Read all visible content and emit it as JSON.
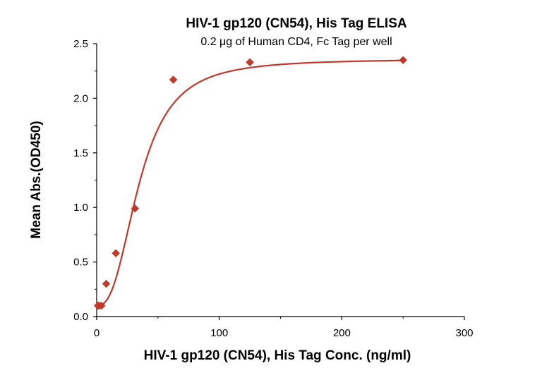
{
  "chart_data": {
    "type": "scatter",
    "title": "HIV-1 gp120 (CN54), His Tag ELISA",
    "subtitle": "0.2 μg of Human CD4, Fc Tag per well",
    "xlabel": "HIV-1 gp120 (CN54), His Tag Conc. (ng/ml)",
    "ylabel": "Mean Abs.(OD450)",
    "xlim": [
      0,
      300
    ],
    "ylim": [
      0,
      2.5
    ],
    "xticks": [
      0,
      100,
      200,
      300
    ],
    "yticks": [
      0.0,
      0.5,
      1.0,
      1.5,
      2.0,
      2.5
    ],
    "xtick_labels": [
      "0",
      "100",
      "200",
      "300"
    ],
    "ytick_labels": [
      "0.0",
      "0.5",
      "1.0",
      "1.5",
      "2.0",
      "2.5"
    ],
    "grid": false,
    "legend": "none",
    "series": [
      {
        "points": [
          {
            "x": 0.98,
            "y": 0.1
          },
          {
            "x": 1.95,
            "y": 0.1
          },
          {
            "x": 3.91,
            "y": 0.1
          },
          {
            "x": 7.81,
            "y": 0.3
          },
          {
            "x": 15.63,
            "y": 0.58
          },
          {
            "x": 31.25,
            "y": 0.99
          },
          {
            "x": 62.5,
            "y": 2.17
          },
          {
            "x": 125,
            "y": 2.33
          },
          {
            "x": 250,
            "y": 2.35
          }
        ],
        "fit": "four-parameter logistic",
        "color": "#c0392b"
      }
    ]
  }
}
